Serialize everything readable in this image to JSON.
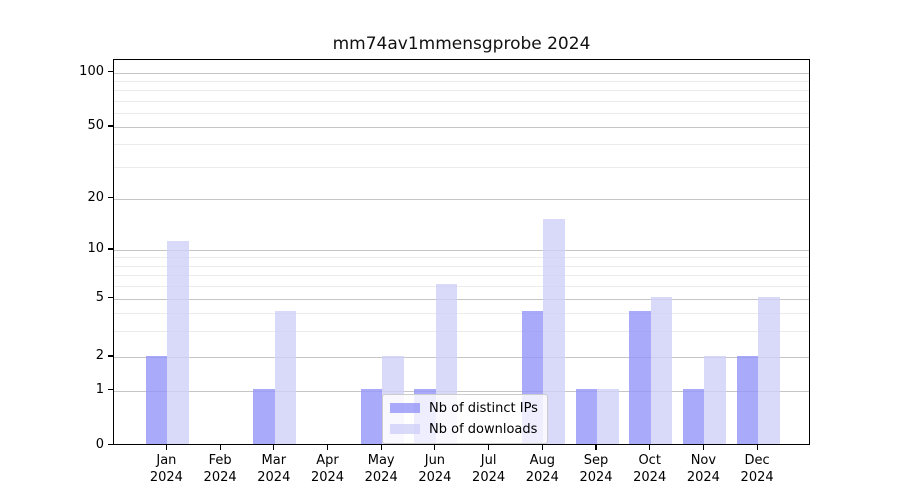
{
  "chart_data": {
    "type": "bar",
    "title": "mm74av1mmensgprobe 2024",
    "categories": [
      "Jan",
      "Feb",
      "Mar",
      "Apr",
      "May",
      "Jun",
      "Jul",
      "Aug",
      "Sep",
      "Oct",
      "Nov",
      "Dec"
    ],
    "category_sublabel": "2024",
    "series": [
      {
        "name": "Nb of distinct IPs",
        "color": "rgba(149,149,249,0.8)",
        "values": [
          2,
          0,
          1,
          0,
          1,
          1,
          0,
          4,
          1,
          4,
          1,
          2
        ]
      },
      {
        "name": "Nb of downloads",
        "color": "rgba(208,208,249,0.8)",
        "values": [
          11,
          0,
          4,
          0,
          2,
          6,
          0,
          15,
          1,
          5,
          2,
          5
        ]
      }
    ],
    "y_axis": {
      "scale": "log-like with zero baseline",
      "major_ticks": [
        100,
        50,
        20,
        10,
        5,
        2,
        1,
        0
      ],
      "minor_gridlines": [
        3,
        4,
        6,
        7,
        8,
        9,
        30,
        40,
        60,
        70,
        80,
        90
      ],
      "range": [
        0,
        100
      ]
    },
    "x_axis": {
      "label": "",
      "tick_format": "month over year"
    },
    "grid": "horizontal",
    "legend_position": "lower center inside plot",
    "colors": {
      "distinct_ips_bar": "#aaaaf9",
      "downloads_bar": "#d9d9f9",
      "major_grid": "#c6c6c6",
      "minor_grid": "#ebebeb",
      "axis": "#000000",
      "background": "#ffffff"
    }
  }
}
